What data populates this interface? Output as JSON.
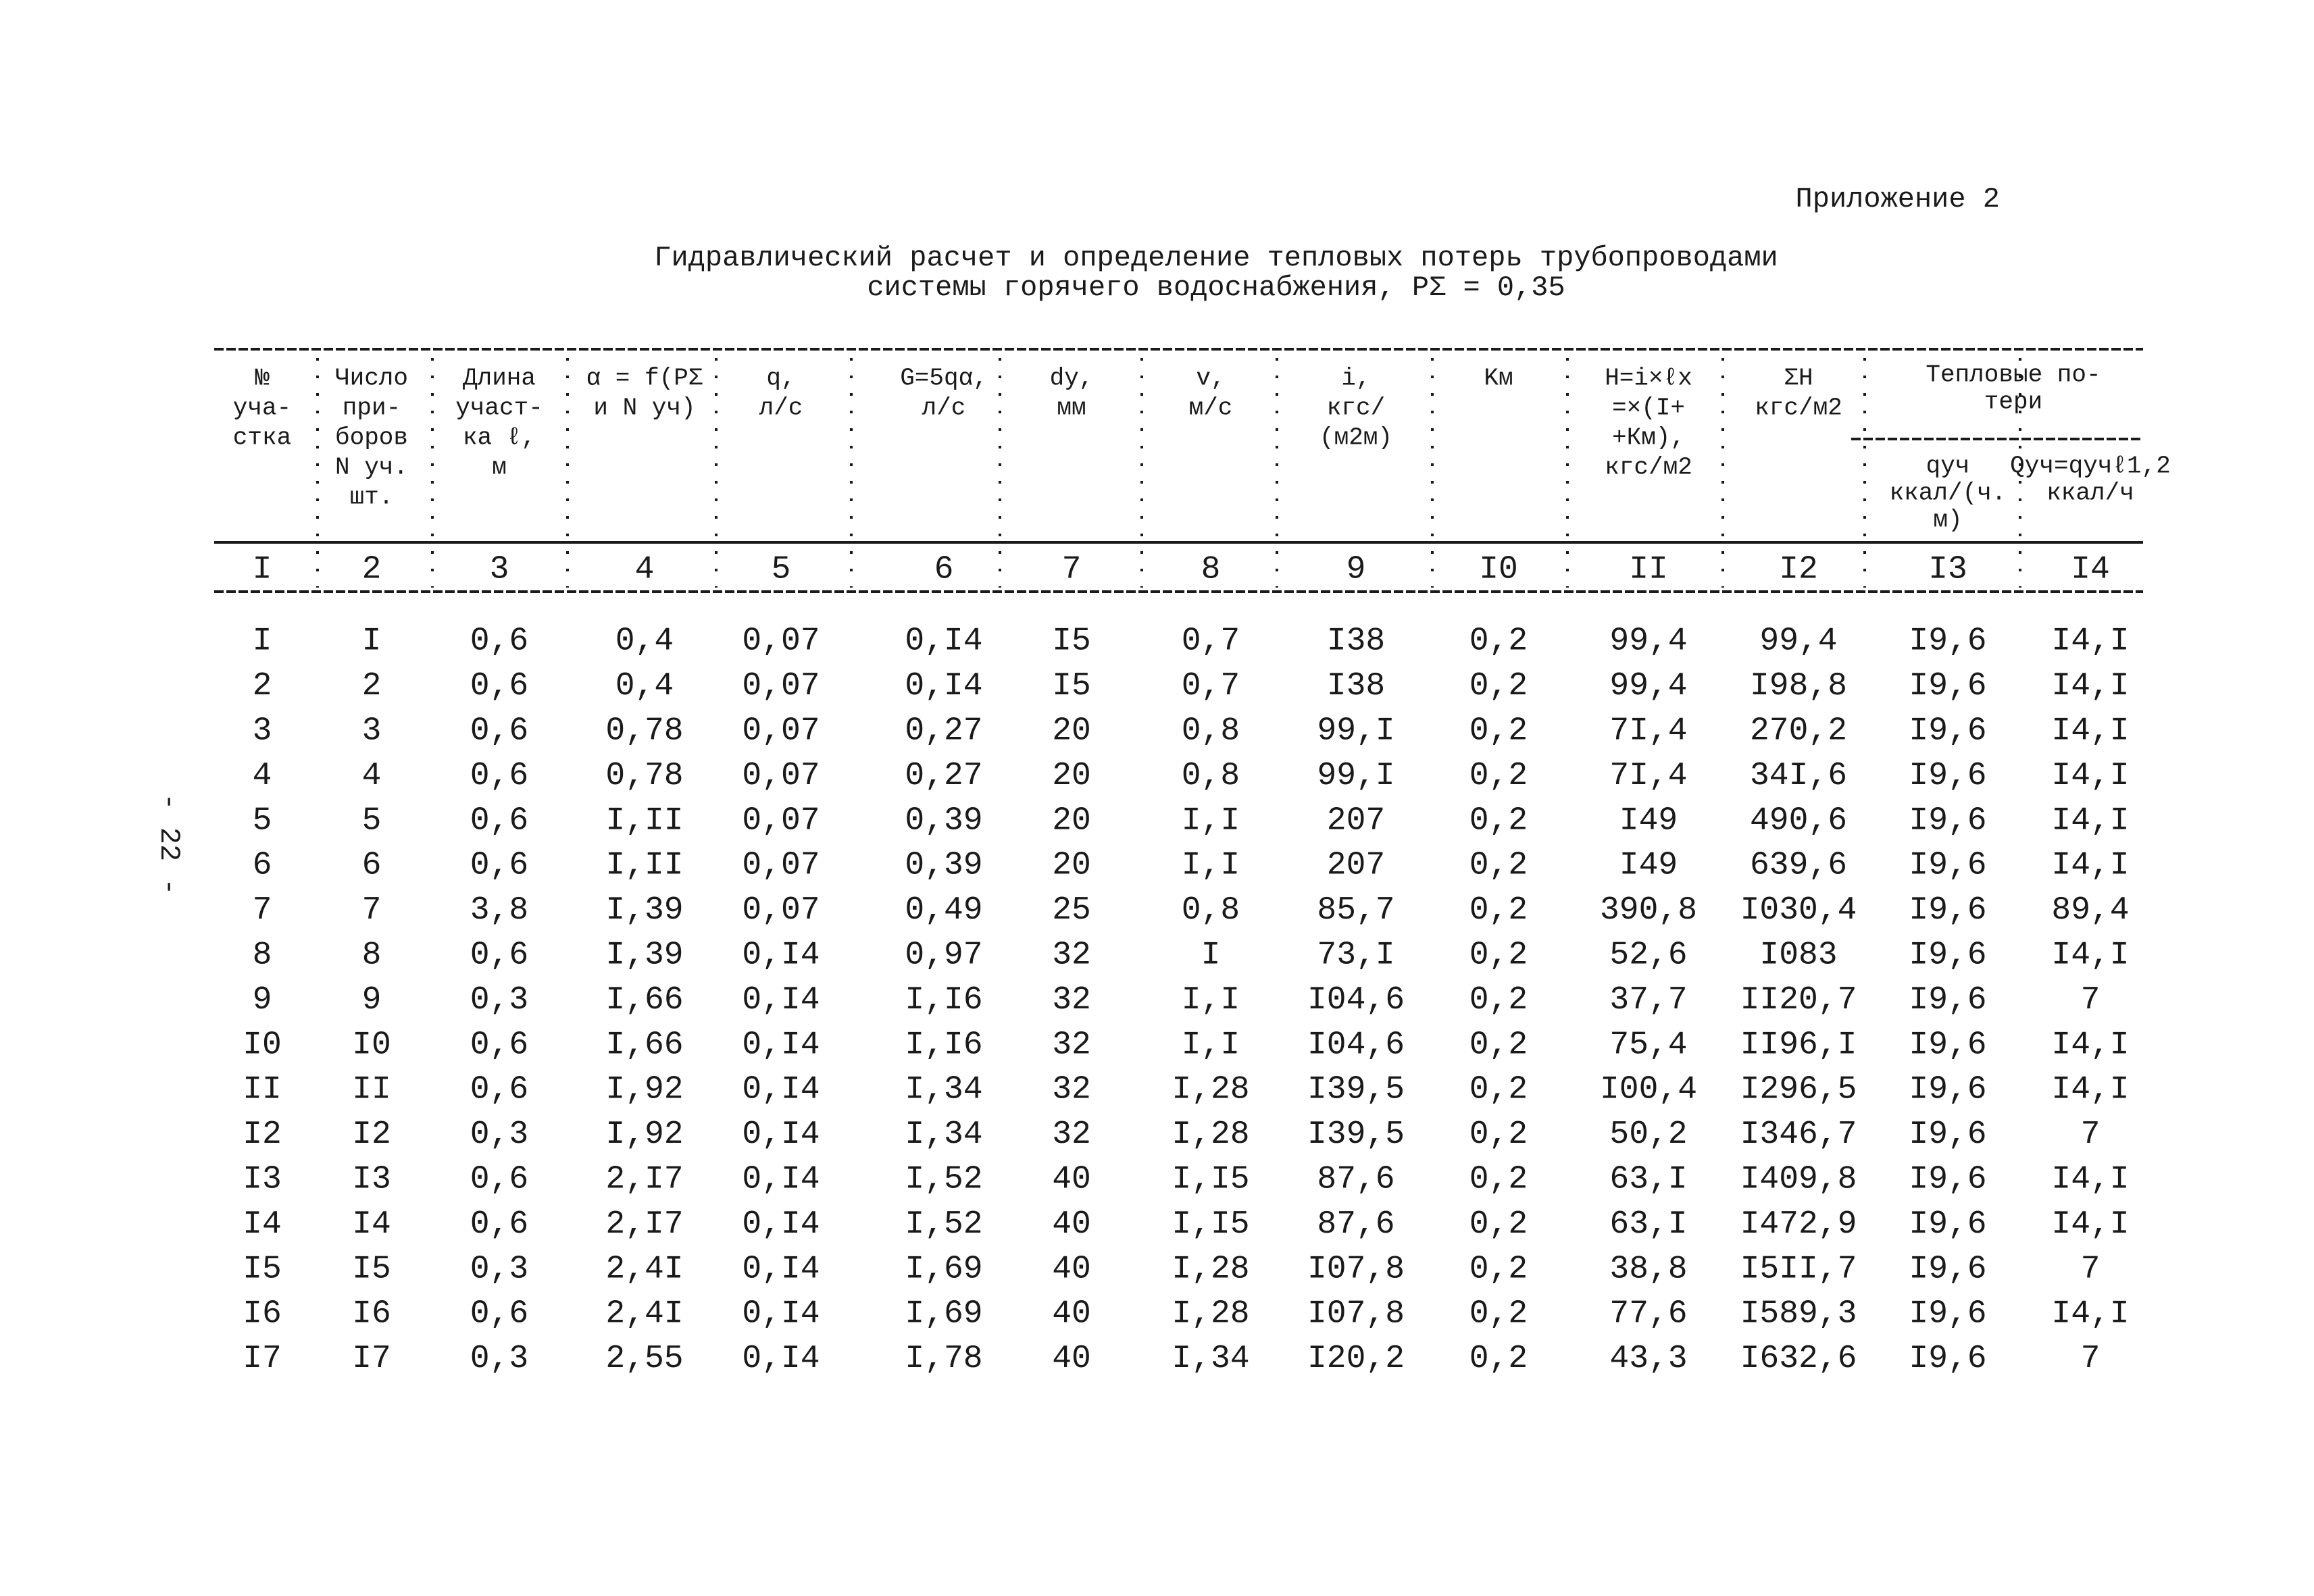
{
  "header": {
    "appendix": "Приложение 2",
    "title": [
      "Гидравлический расчет и определение тепловых потерь трубопроводами",
      "системы горячего водоснабжения, PΣ = 0,35"
    ]
  },
  "page_number": "- 22 -",
  "table": {
    "group_header": [
      "Тепловые по-",
      "тери"
    ],
    "columns": [
      [
        "№",
        "уча-",
        "стка"
      ],
      [
        "Число",
        "при-",
        "боров",
        "N уч.",
        "шт."
      ],
      [
        "Длина",
        "участ-",
        "ка ℓ,",
        "м"
      ],
      [
        "α = f(PΣ",
        "и N уч)"
      ],
      [
        "q,",
        "л/с"
      ],
      [
        "G=5qα,",
        "л/с"
      ],
      [
        "dy,",
        "мм"
      ],
      [
        "v,",
        "м/с"
      ],
      [
        "i,",
        "кгс/",
        "(м2м)"
      ],
      [
        "Kм"
      ],
      [
        "H=i×ℓx",
        "=×(I+",
        "+Км),",
        "кгс/м2"
      ],
      [
        "ΣH",
        "кгс/м2"
      ],
      [
        "qуч",
        "ккал/(ч.",
        "м)"
      ],
      [
        "Qуч=qучℓ1,2",
        "ккал/ч"
      ]
    ],
    "column_numbers": [
      "I",
      "2",
      "3",
      "4",
      "5",
      "6",
      "7",
      "8",
      "9",
      "I0",
      "II",
      "I2",
      "I3",
      "I4"
    ],
    "rows": [
      [
        "I",
        "I",
        "0,6",
        "0,4",
        "0,07",
        "0,I4",
        "I5",
        "0,7",
        "I38",
        "0,2",
        "99,4",
        "99,4",
        "I9,6",
        "I4,I"
      ],
      [
        "2",
        "2",
        "0,6",
        "0,4",
        "0,07",
        "0,I4",
        "I5",
        "0,7",
        "I38",
        "0,2",
        "99,4",
        "I98,8",
        "I9,6",
        "I4,I"
      ],
      [
        "3",
        "3",
        "0,6",
        "0,78",
        "0,07",
        "0,27",
        "20",
        "0,8",
        "99,I",
        "0,2",
        "7I,4",
        "270,2",
        "I9,6",
        "I4,I"
      ],
      [
        "4",
        "4",
        "0,6",
        "0,78",
        "0,07",
        "0,27",
        "20",
        "0,8",
        "99,I",
        "0,2",
        "7I,4",
        "34I,6",
        "I9,6",
        "I4,I"
      ],
      [
        "5",
        "5",
        "0,6",
        "I,II",
        "0,07",
        "0,39",
        "20",
        "I,I",
        "207",
        "0,2",
        "I49",
        "490,6",
        "I9,6",
        "I4,I"
      ],
      [
        "6",
        "6",
        "0,6",
        "I,II",
        "0,07",
        "0,39",
        "20",
        "I,I",
        "207",
        "0,2",
        "I49",
        "639,6",
        "I9,6",
        "I4,I"
      ],
      [
        "7",
        "7",
        "3,8",
        "I,39",
        "0,07",
        "0,49",
        "25",
        "0,8",
        "85,7",
        "0,2",
        "390,8",
        "I030,4",
        "I9,6",
        "89,4"
      ],
      [
        "8",
        "8",
        "0,6",
        "I,39",
        "0,I4",
        "0,97",
        "32",
        "I",
        "73,I",
        "0,2",
        "52,6",
        "I083",
        "I9,6",
        "I4,I"
      ],
      [
        "9",
        "9",
        "0,3",
        "I,66",
        "0,I4",
        "I,I6",
        "32",
        "I,I",
        "I04,6",
        "0,2",
        "37,7",
        "II20,7",
        "I9,6",
        "7"
      ],
      [
        "I0",
        "I0",
        "0,6",
        "I,66",
        "0,I4",
        "I,I6",
        "32",
        "I,I",
        "I04,6",
        "0,2",
        "75,4",
        "II96,I",
        "I9,6",
        "I4,I"
      ],
      [
        "II",
        "II",
        "0,6",
        "I,92",
        "0,I4",
        "I,34",
        "32",
        "I,28",
        "I39,5",
        "0,2",
        "I00,4",
        "I296,5",
        "I9,6",
        "I4,I"
      ],
      [
        "I2",
        "I2",
        "0,3",
        "I,92",
        "0,I4",
        "I,34",
        "32",
        "I,28",
        "I39,5",
        "0,2",
        "50,2",
        "I346,7",
        "I9,6",
        "7"
      ],
      [
        "I3",
        "I3",
        "0,6",
        "2,I7",
        "0,I4",
        "I,52",
        "40",
        "I,I5",
        "87,6",
        "0,2",
        "63,I",
        "I409,8",
        "I9,6",
        "I4,I"
      ],
      [
        "I4",
        "I4",
        "0,6",
        "2,I7",
        "0,I4",
        "I,52",
        "40",
        "I,I5",
        "87,6",
        "0,2",
        "63,I",
        "I472,9",
        "I9,6",
        "I4,I"
      ],
      [
        "I5",
        "I5",
        "0,3",
        "2,4I",
        "0,I4",
        "I,69",
        "40",
        "I,28",
        "I07,8",
        "0,2",
        "38,8",
        "I5II,7",
        "I9,6",
        "7"
      ],
      [
        "I6",
        "I6",
        "0,6",
        "2,4I",
        "0,I4",
        "I,69",
        "40",
        "I,28",
        "I07,8",
        "0,2",
        "77,6",
        "I589,3",
        "I9,6",
        "I4,I"
      ],
      [
        "I7",
        "I7",
        "0,3",
        "2,55",
        "0,I4",
        "I,78",
        "40",
        "I,34",
        "I20,2",
        "0,2",
        "43,3",
        "I632,6",
        "I9,6",
        "7"
      ]
    ]
  }
}
